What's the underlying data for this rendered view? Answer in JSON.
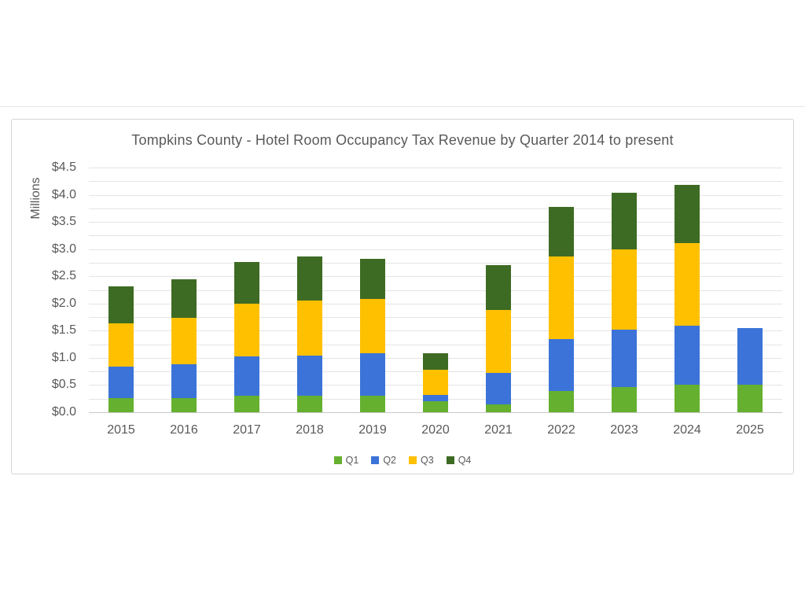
{
  "theme": {
    "background": "#FFFFFF",
    "panel_border": "#D5D5D5",
    "divider": "#E7E7E7",
    "gridline": "#E4E4E4",
    "axis_line": "#C9C9C9",
    "text": "#595959"
  },
  "chart_data": {
    "type": "bar",
    "stacked": true,
    "title": "Tompkins County - Hotel Room Occupancy Tax Revenue by Quarter 2014 to present",
    "ylabel": "Millions",
    "xlabel": "",
    "categories": [
      "2015",
      "2016",
      "2017",
      "2018",
      "2019",
      "2020",
      "2021",
      "2022",
      "2023",
      "2024",
      "2025"
    ],
    "series": [
      {
        "name": "Q1",
        "color": "#65B02F",
        "values": [
          0.26,
          0.26,
          0.3,
          0.31,
          0.3,
          0.2,
          0.15,
          0.39,
          0.47,
          0.5,
          0.5
        ]
      },
      {
        "name": "Q2",
        "color": "#3B73D8",
        "values": [
          0.58,
          0.62,
          0.73,
          0.73,
          0.79,
          0.12,
          0.58,
          0.95,
          1.05,
          1.09,
          1.05
        ]
      },
      {
        "name": "Q3",
        "color": "#FFC000",
        "values": [
          0.8,
          0.85,
          0.96,
          1.02,
          1.0,
          0.46,
          1.15,
          1.52,
          1.48,
          1.52,
          0
        ]
      },
      {
        "name": "Q4",
        "color": "#3E6B23",
        "values": [
          0.68,
          0.72,
          0.78,
          0.8,
          0.73,
          0.3,
          0.82,
          0.92,
          1.03,
          1.07,
          0
        ]
      }
    ],
    "totals": [
      2.32,
      2.45,
      2.77,
      2.86,
      2.82,
      1.08,
      2.7,
      3.78,
      4.03,
      4.18,
      1.55
    ],
    "ylim": [
      0,
      4.5
    ],
    "ytick_step": 0.5,
    "gridline_step": 0.25,
    "ytick_labels": [
      "$0.0",
      "$0.5",
      "$1.0",
      "$1.5",
      "$2.0",
      "$2.5",
      "$3.0",
      "$3.5",
      "$4.0",
      "$4.5"
    ],
    "grid": true,
    "legend_position": "bottom",
    "legend_entries": [
      "Q1",
      "Q2",
      "Q3",
      "Q4"
    ]
  }
}
